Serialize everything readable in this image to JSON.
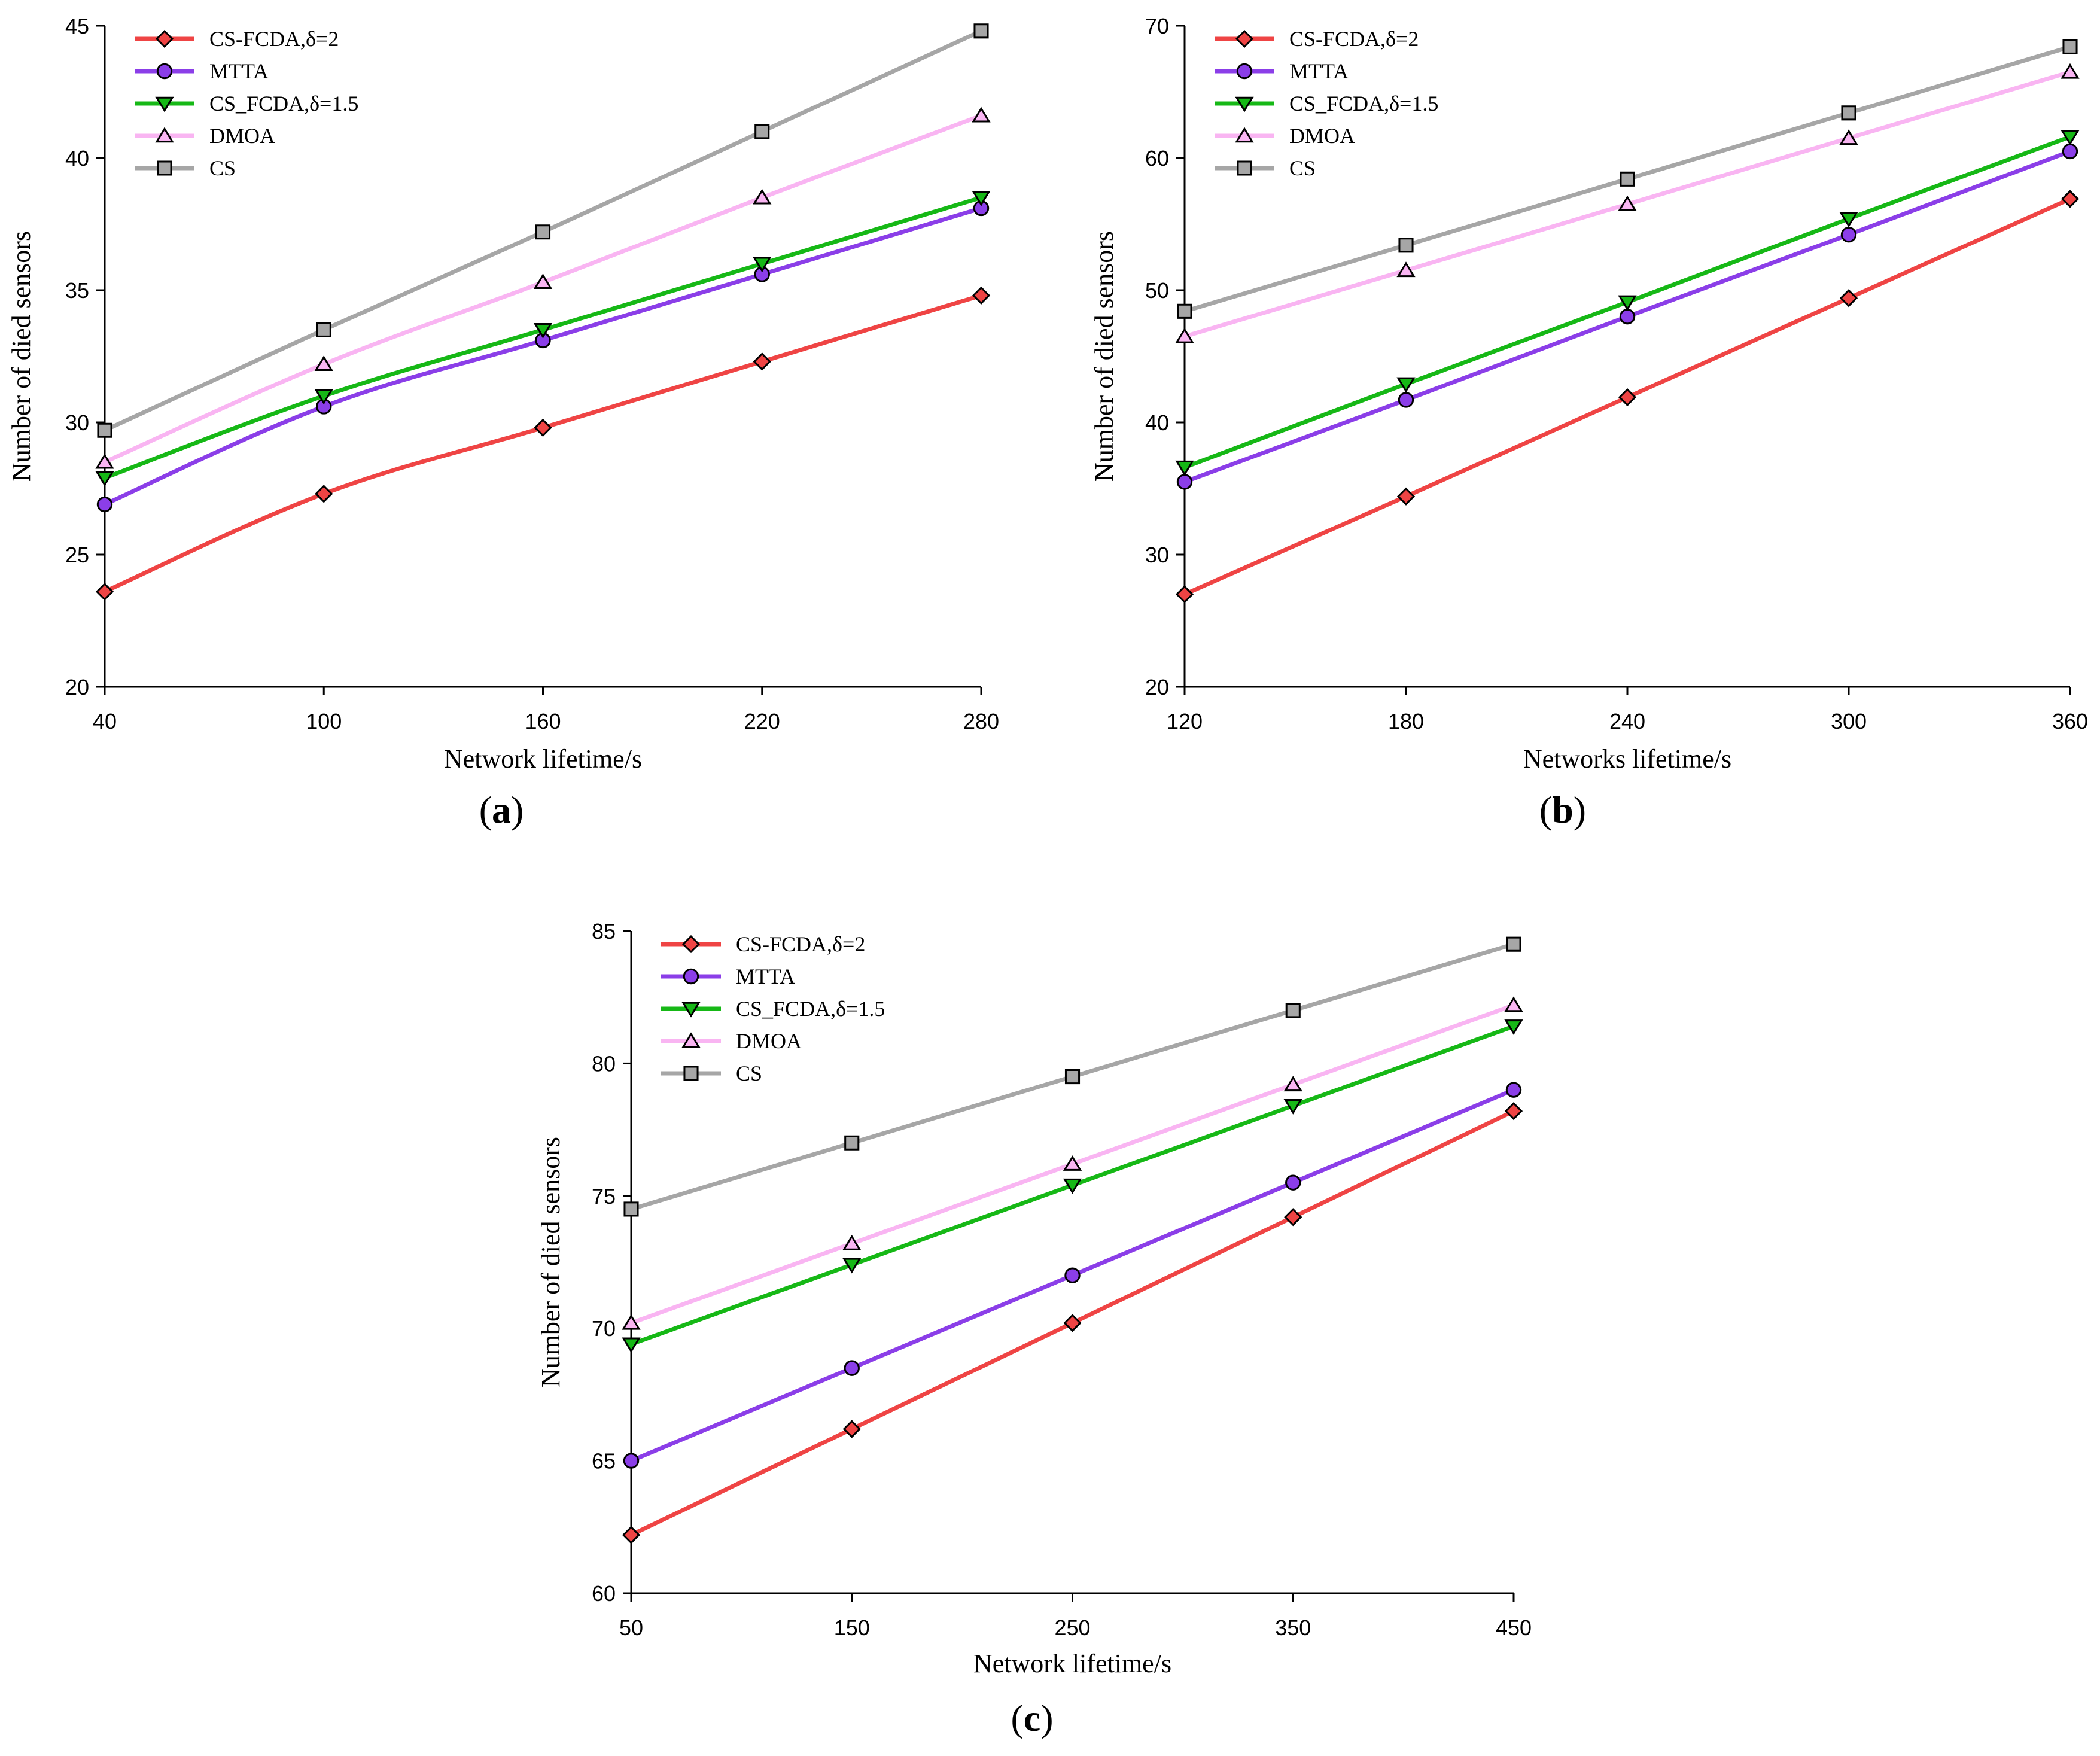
{
  "figure": {
    "panels": [
      {
        "id": "a",
        "label_open": "(",
        "label_letter": "a",
        "label_close": ")"
      },
      {
        "id": "b",
        "label_open": "(",
        "label_letter": "b",
        "label_close": ")"
      },
      {
        "id": "c",
        "label_open": "(",
        "label_letter": "c",
        "label_close": ")"
      }
    ]
  },
  "chart_data": [
    {
      "panel": "a",
      "type": "line",
      "xlabel": "Network lifetime/s",
      "ylabel": "Number of died sensors",
      "x": [
        40,
        100,
        160,
        220,
        280
      ],
      "xlim": [
        40,
        280
      ],
      "ylim": [
        20,
        45
      ],
      "yticks": [
        20,
        25,
        30,
        35,
        40,
        45
      ],
      "grid": false,
      "legend_position": "top-left",
      "series": [
        {
          "name": "CS-FCDA,δ=2",
          "color": "#ef4444",
          "marker": "diamond",
          "values": [
            23.6,
            27.3,
            29.8,
            32.3,
            34.8
          ]
        },
        {
          "name": "MTTA",
          "color": "#8b3ee8",
          "marker": "circle",
          "values": [
            26.9,
            30.6,
            33.1,
            35.6,
            38.1
          ]
        },
        {
          "name": "CS_FCDA,δ=1.5",
          "color": "#16b816",
          "marker": "triangle-down",
          "values": [
            27.9,
            31.0,
            33.5,
            36.0,
            38.5
          ]
        },
        {
          "name": "DMOA",
          "color": "#f9b5f2",
          "marker": "triangle-up",
          "values": [
            28.5,
            32.2,
            35.3,
            38.5,
            41.6
          ]
        },
        {
          "name": "CS",
          "color": "#a6a6a6",
          "marker": "square",
          "values": [
            29.7,
            33.5,
            37.2,
            41.0,
            44.8
          ]
        }
      ]
    },
    {
      "panel": "b",
      "type": "line",
      "xlabel": "Networks lifetime/s",
      "ylabel": "Number of died sensors",
      "x": [
        120,
        180,
        240,
        300,
        360
      ],
      "xlim": [
        120,
        360
      ],
      "ylim": [
        20,
        70
      ],
      "yticks": [
        20,
        30,
        40,
        50,
        60,
        70
      ],
      "grid": false,
      "legend_position": "top-left",
      "series": [
        {
          "name": "CS-FCDA,δ=2",
          "color": "#ef4444",
          "marker": "diamond",
          "values": [
            27.0,
            34.4,
            41.9,
            49.4,
            56.9
          ]
        },
        {
          "name": "MTTA",
          "color": "#8b3ee8",
          "marker": "circle",
          "values": [
            35.5,
            41.7,
            48.0,
            54.2,
            60.5
          ]
        },
        {
          "name": "CS_FCDA,δ=1.5",
          "color": "#16b816",
          "marker": "triangle-down",
          "values": [
            36.6,
            42.9,
            49.1,
            55.4,
            61.6
          ]
        },
        {
          "name": "DMOA",
          "color": "#f9b5f2",
          "marker": "triangle-up",
          "values": [
            46.5,
            51.5,
            56.5,
            61.5,
            66.5
          ]
        },
        {
          "name": "CS",
          "color": "#a6a6a6",
          "marker": "square",
          "values": [
            48.4,
            53.4,
            58.4,
            63.4,
            68.4
          ]
        }
      ]
    },
    {
      "panel": "c",
      "type": "line",
      "xlabel": "Network lifetime/s",
      "ylabel": "Number of died sensors",
      "x": [
        50,
        150,
        250,
        350,
        450
      ],
      "xlim": [
        50,
        450
      ],
      "ylim": [
        60,
        85
      ],
      "yticks": [
        60,
        65,
        70,
        75,
        80,
        85
      ],
      "grid": false,
      "legend_position": "top-left",
      "series": [
        {
          "name": "CS-FCDA,δ=2",
          "color": "#ef4444",
          "marker": "diamond",
          "values": [
            62.2,
            66.2,
            70.2,
            74.2,
            78.2
          ]
        },
        {
          "name": "MTTA",
          "color": "#8b3ee8",
          "marker": "circle",
          "values": [
            65.0,
            68.5,
            72.0,
            75.5,
            79.0
          ]
        },
        {
          "name": "CS_FCDA,δ=1.5",
          "color": "#16b816",
          "marker": "triangle-down",
          "values": [
            69.4,
            72.4,
            75.4,
            78.4,
            81.4
          ]
        },
        {
          "name": "DMOA",
          "color": "#f9b5f2",
          "marker": "triangle-up",
          "values": [
            70.2,
            73.2,
            76.2,
            79.2,
            82.2
          ]
        },
        {
          "name": "CS",
          "color": "#a6a6a6",
          "marker": "square",
          "values": [
            74.5,
            77.0,
            79.5,
            82.0,
            84.5
          ]
        }
      ]
    }
  ]
}
